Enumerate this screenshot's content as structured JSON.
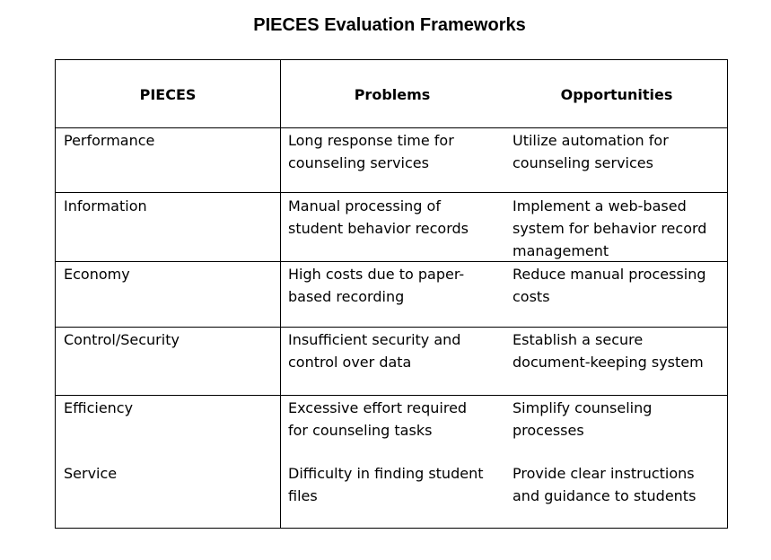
{
  "title": "PIECES Evaluation Frameworks",
  "table": {
    "headers": [
      "PIECES",
      "Problems",
      "Opportunities"
    ],
    "rows": [
      {
        "category": "Performance",
        "problem": [
          "Long response time for",
          "counseling services"
        ],
        "opportunity": [
          "Utilize automation for",
          "counseling services"
        ]
      },
      {
        "category": "Information",
        "problem": [
          "Manual processing of",
          "student behavior records"
        ],
        "opportunity": [
          "Implement a web-based",
          "system for behavior record",
          "management"
        ]
      },
      {
        "category": "Economy",
        "problem": [
          "High costs due to paper-",
          "based recording"
        ],
        "opportunity": [
          "Reduce manual processing",
          "costs"
        ]
      },
      {
        "category": "Control/Security",
        "problem": [
          "Insufficient security and",
          "control over data"
        ],
        "opportunity": [
          "Establish a secure",
          "document-keeping system"
        ]
      },
      {
        "category": "Efficiency",
        "problem": [
          "Excessive effort required",
          "for counseling tasks"
        ],
        "opportunity": [
          "Simplify counseling",
          "processes"
        ]
      },
      {
        "category": "Service",
        "problem": [
          "Difficulty in finding student",
          "files"
        ],
        "opportunity": [
          "Provide clear instructions",
          "and guidance to students"
        ]
      }
    ]
  }
}
